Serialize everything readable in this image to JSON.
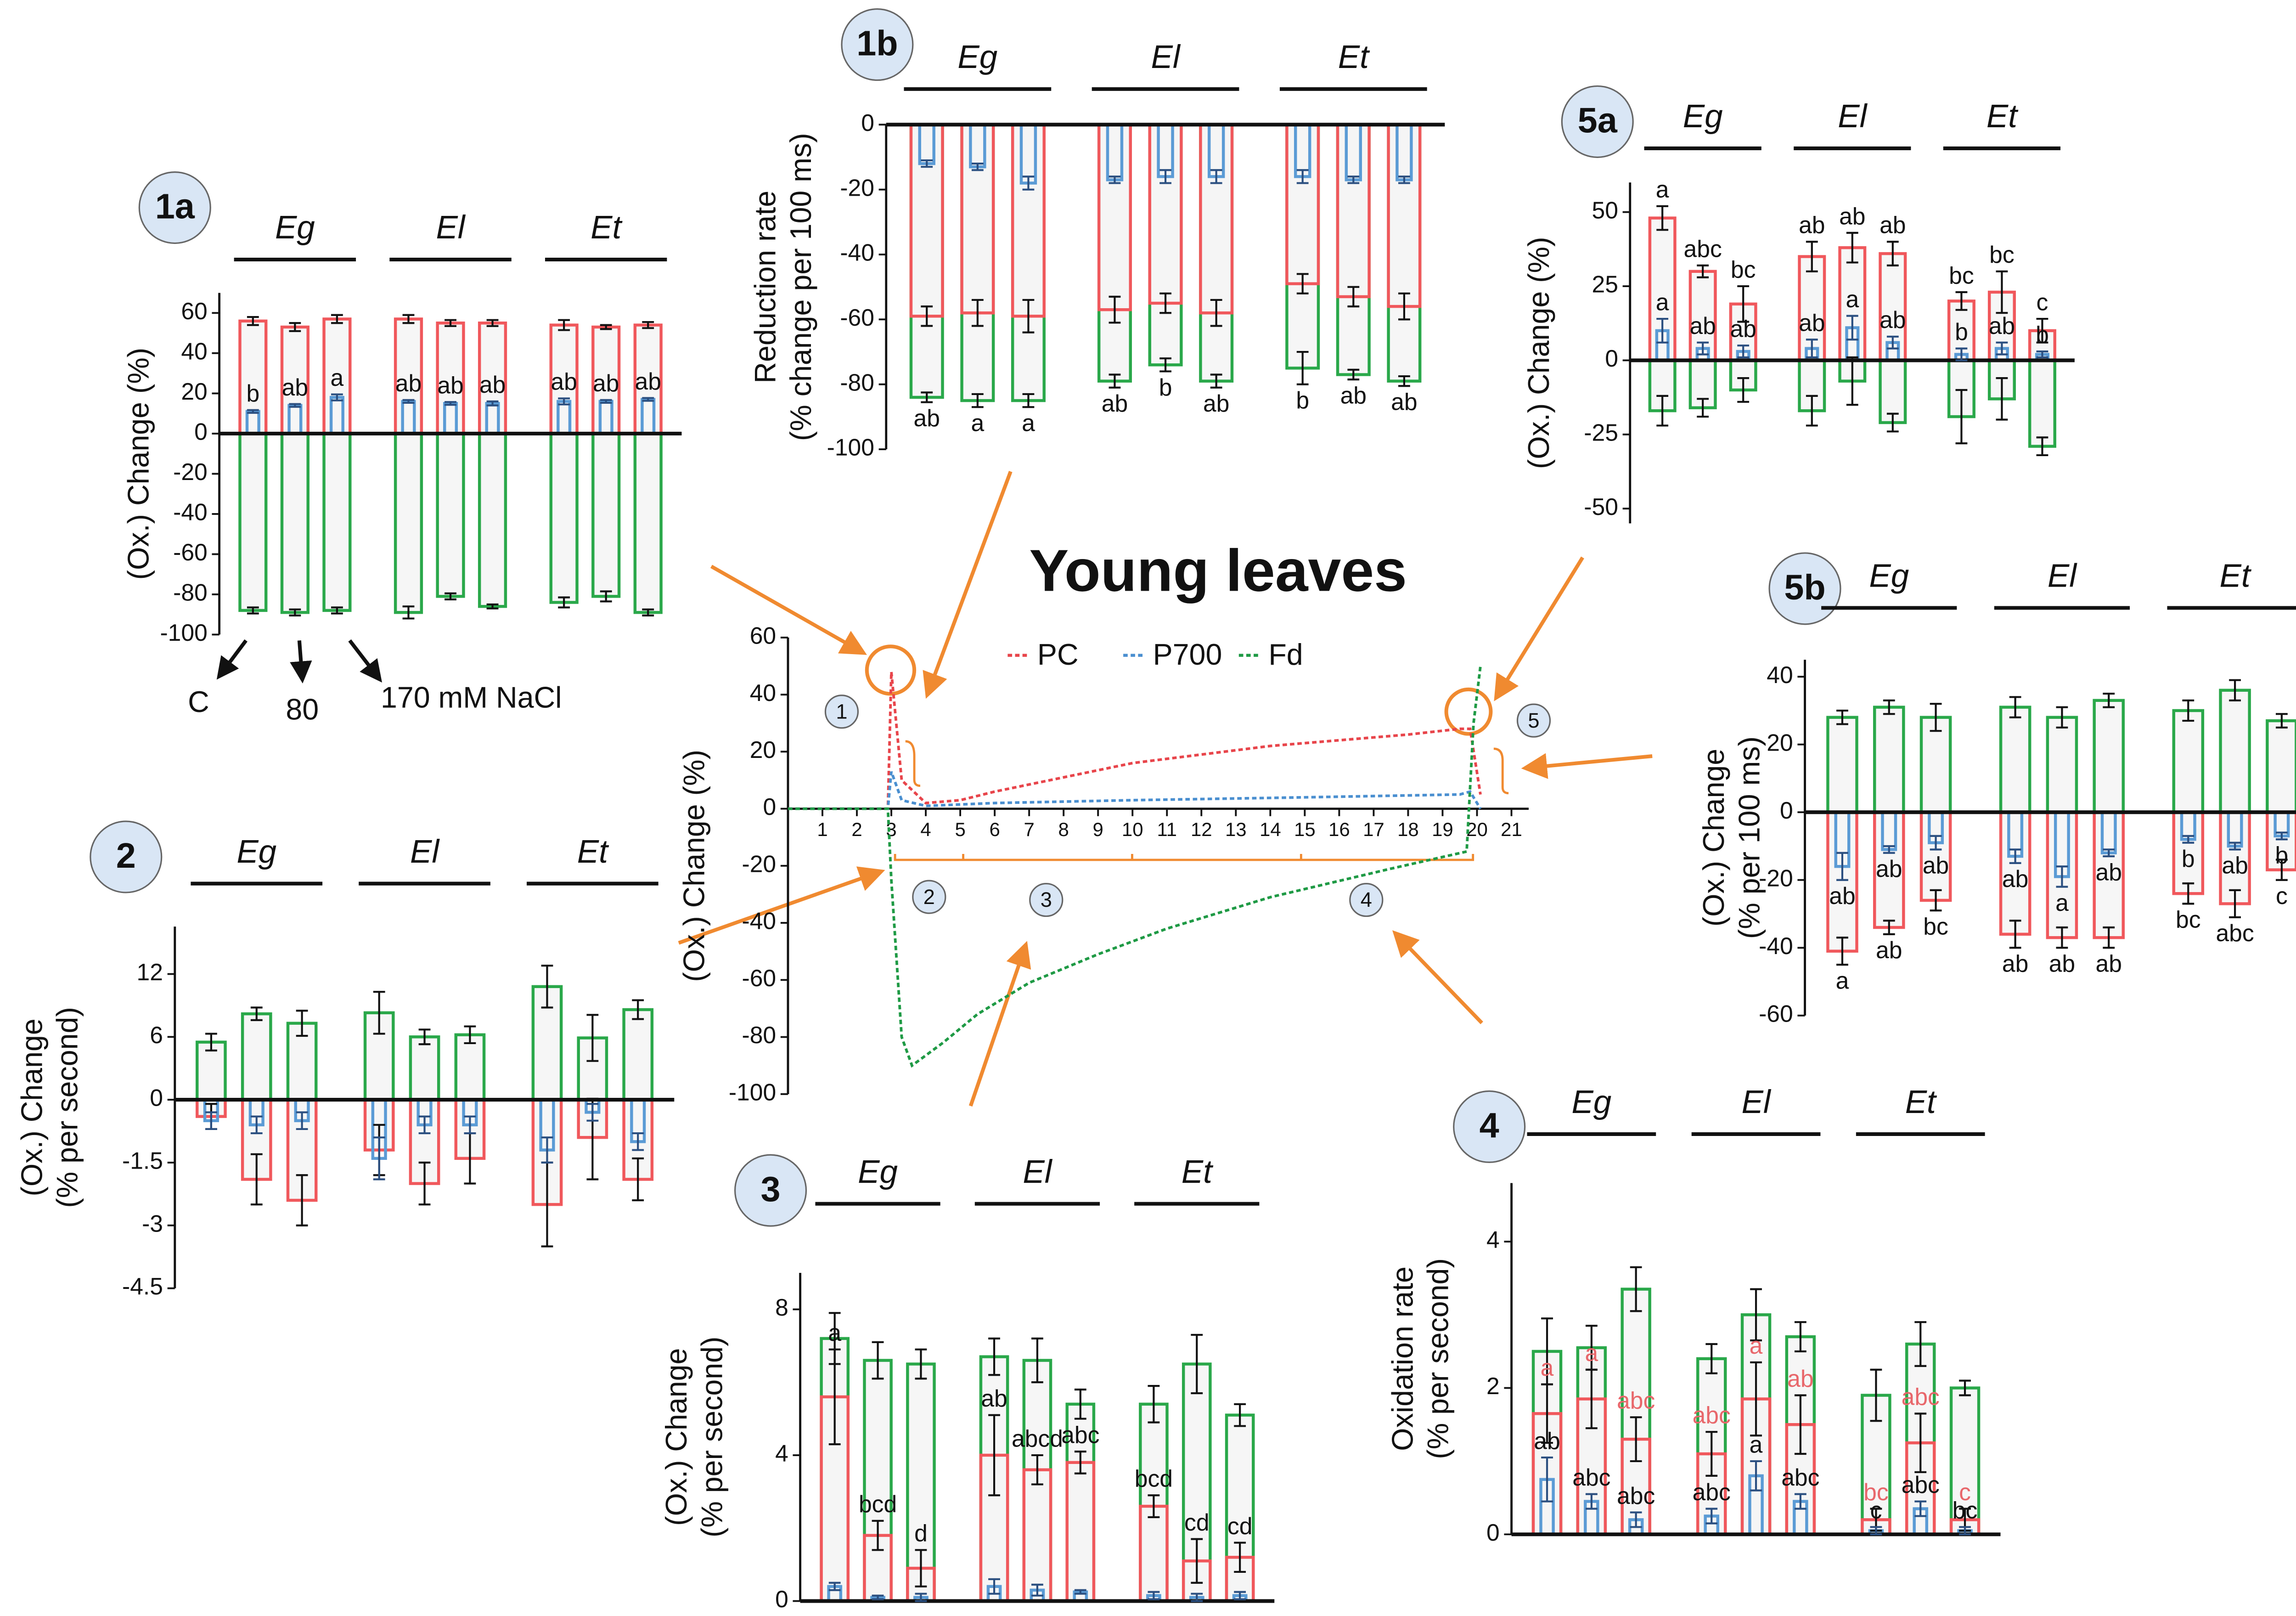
{
  "chart_data": [
    {
      "type": "bar",
      "title": "1a",
      "group_labels": [
        "Eg",
        "El",
        "Et"
      ],
      "ylabel": [
        "(Ox.) Change (%)"
      ],
      "ylim": [
        -100,
        70
      ],
      "yticks": [
        -100,
        -80,
        -60,
        -40,
        -20,
        0,
        20,
        40,
        60
      ],
      "treatment_labels": [
        "C",
        "80",
        "170 mM NaCl"
      ],
      "series": [
        {
          "color": "#2aa84a",
          "values": [
            -88,
            -89,
            -88,
            -89,
            -81,
            -86,
            -84,
            -81,
            -89
          ],
          "errors": [
            1.5,
            1.5,
            1.5,
            3,
            1.5,
            1,
            2.5,
            2.5,
            1.5
          ]
        },
        {
          "color": "#f0585c",
          "values": [
            56,
            53,
            57,
            57,
            55,
            55,
            54,
            53,
            54
          ],
          "errors": [
            2,
            2,
            2,
            2,
            1.5,
            1.5,
            2.5,
            1,
            1.5
          ]
        },
        {
          "color": "#5b9bd5",
          "values": [
            11,
            14,
            18,
            16,
            15,
            15,
            16,
            16,
            17
          ],
          "errors": [
            0.7,
            0.7,
            1.5,
            0.7,
            0.7,
            1,
            1.5,
            0.7,
            0.7
          ],
          "letters": [
            "b",
            "ab",
            "a",
            "ab",
            "ab",
            "ab",
            "ab",
            "ab",
            "ab"
          ]
        }
      ]
    },
    {
      "type": "bar",
      "title": "1b",
      "group_labels": [
        "Eg",
        "El",
        "Et"
      ],
      "ylabel": [
        "Reduction rate",
        "(% change per 100 ms)"
      ],
      "ylim": [
        -100,
        0
      ],
      "yticks": [
        -100,
        -80,
        -60,
        -40,
        -20,
        0
      ],
      "series": [
        {
          "color": "#2aa84a",
          "values": [
            -84,
            -85,
            -85,
            -79,
            -74,
            -79,
            -75,
            -77,
            -79
          ],
          "errors": [
            1.5,
            2,
            2,
            2,
            2,
            2,
            5,
            1.5,
            1.5
          ],
          "letters": [
            "ab",
            "a",
            "a",
            "ab",
            "b",
            "ab",
            "b",
            "ab",
            "ab"
          ]
        },
        {
          "color": "#f0585c",
          "values": [
            -59,
            -58,
            -59,
            -57,
            -55,
            -58,
            -49,
            -53,
            -56
          ],
          "errors": [
            3,
            4,
            5,
            4,
            3,
            4,
            3,
            3,
            4
          ]
        },
        {
          "color": "#5b9bd5",
          "values": [
            -12,
            -13,
            -18,
            -17,
            -16,
            -16,
            -16,
            -17,
            -17
          ],
          "errors": [
            1,
            1,
            2,
            1,
            2,
            2,
            2,
            1,
            1
          ]
        }
      ]
    },
    {
      "type": "bar",
      "title": "5a",
      "group_labels": [
        "Eg",
        "El",
        "Et"
      ],
      "ylabel": [
        "(Ox.) Change (%)"
      ],
      "ylim": [
        -55,
        60
      ],
      "yticks": [
        -50,
        -25,
        0,
        25,
        50
      ],
      "series": [
        {
          "color": "#2aa84a",
          "values": [
            -17,
            -16,
            -10,
            -17,
            -7,
            -21,
            -19,
            -13,
            -29
          ],
          "errors": [
            5,
            3,
            4,
            5,
            8,
            3,
            9,
            7,
            3
          ]
        },
        {
          "color": "#f0585c",
          "values": [
            48,
            30,
            19,
            35,
            38,
            36,
            20,
            23,
            10
          ],
          "errors": [
            4,
            2,
            6,
            5,
            5,
            4,
            3,
            7,
            4
          ],
          "letters": [
            "a",
            "abc",
            "bc",
            "ab",
            "ab",
            "ab",
            "bc",
            "bc",
            "c"
          ]
        },
        {
          "color": "#5b9bd5",
          "values": [
            10,
            4,
            3,
            4,
            11,
            6,
            2,
            4,
            2
          ],
          "errors": [
            4,
            2,
            2,
            3,
            4,
            2,
            2,
            2,
            1
          ],
          "letters": [
            "a",
            "ab",
            "ab",
            "ab",
            "a",
            "ab",
            "b",
            "ab",
            "b"
          ]
        }
      ]
    },
    {
      "type": "bar",
      "title": "5b",
      "group_labels": [
        "Eg",
        "El",
        "Et"
      ],
      "ylabel": [
        "(Ox.) Change",
        "(% per 100 ms)"
      ],
      "ylim": [
        -60,
        45
      ],
      "yticks": [
        -60,
        -40,
        -20,
        0,
        20,
        40
      ],
      "series": [
        {
          "color": "#2aa84a",
          "values": [
            28,
            31,
            28,
            31,
            28,
            33,
            30,
            36,
            27
          ],
          "errors": [
            2,
            2,
            4,
            3,
            3,
            2,
            3,
            3,
            2
          ]
        },
        {
          "color": "#f0585c",
          "values": [
            -41,
            -34,
            -26,
            -36,
            -37,
            -37,
            -24,
            -27,
            -17
          ],
          "errors": [
            4,
            2,
            3,
            4,
            3,
            3,
            3,
            4,
            3
          ],
          "letters": [
            "a",
            "ab",
            "bc",
            "ab",
            "ab",
            "ab",
            "bc",
            "abc",
            "c"
          ]
        },
        {
          "color": "#5b9bd5",
          "values": [
            -16,
            -11,
            -9,
            -13,
            -19,
            -12,
            -8,
            -10,
            -7
          ],
          "errors": [
            4,
            1,
            2,
            2,
            3,
            1,
            1,
            1,
            1
          ],
          "letters": [
            "ab",
            "ab",
            "ab",
            "ab",
            "a",
            "ab",
            "b",
            "ab",
            "b"
          ]
        }
      ]
    },
    {
      "type": "bar",
      "title": "2",
      "group_labels": [
        "Eg",
        "El",
        "Et"
      ],
      "ylabel": [
        "(Ox.) Change",
        "(% per second)"
      ],
      "y_scale": "piecewise",
      "ylim": [
        -4.5,
        12
      ],
      "yticks": [
        -4.5,
        -3,
        -1.5,
        0,
        6,
        12
      ],
      "series": [
        {
          "color": "#2aa84a",
          "values": [
            5.5,
            8.2,
            7.3,
            8.3,
            6.0,
            6.2,
            10.8,
            5.9,
            8.6
          ],
          "errors": [
            0.8,
            0.6,
            1.2,
            2,
            0.7,
            0.8,
            2,
            2.2,
            0.9
          ]
        },
        {
          "color": "#f0585c",
          "values": [
            -0.4,
            -1.9,
            -2.4,
            -1.2,
            -2.0,
            -1.4,
            -2.5,
            -0.9,
            -1.9
          ],
          "errors": [
            0.3,
            0.6,
            0.6,
            0.6,
            0.5,
            0.6,
            1.0,
            1.0,
            0.5
          ]
        },
        {
          "color": "#5b9bd5",
          "values": [
            -0.5,
            -0.6,
            -0.5,
            -1.4,
            -0.6,
            -0.6,
            -1.2,
            -0.3,
            -1.0
          ],
          "errors": [
            0.2,
            0.2,
            0.2,
            0.5,
            0.2,
            0.2,
            0.3,
            0.2,
            0.2
          ]
        }
      ]
    },
    {
      "type": "bar",
      "title": "3",
      "group_labels": [
        "Eg",
        "El",
        "Et"
      ],
      "ylabel": [
        "(Ox.) Change",
        "(% per second)"
      ],
      "ylim": [
        0,
        9
      ],
      "yticks": [
        0,
        4,
        8
      ],
      "series": [
        {
          "color": "#2aa84a",
          "values": [
            7.2,
            6.6,
            6.5,
            6.7,
            6.6,
            5.4,
            5.4,
            6.5,
            5.1
          ],
          "errors": [
            0.7,
            0.5,
            0.4,
            0.5,
            0.6,
            0.4,
            0.5,
            0.8,
            0.3
          ]
        },
        {
          "color": "#f0585c",
          "values": [
            5.6,
            1.8,
            0.9,
            4.0,
            3.6,
            3.8,
            2.6,
            1.1,
            1.2
          ],
          "errors": [
            1.3,
            0.4,
            0.5,
            1.1,
            0.4,
            0.3,
            0.3,
            0.6,
            0.4
          ],
          "letters": [
            "a",
            "bcd",
            "d",
            "ab",
            "abcd",
            "abc",
            "bcd",
            "cd",
            "cd"
          ]
        },
        {
          "color": "#5b9bd5",
          "values": [
            0.4,
            0.1,
            0.1,
            0.4,
            0.3,
            0.25,
            0.15,
            0.1,
            0.15
          ],
          "errors": [
            0.1,
            0.05,
            0.1,
            0.2,
            0.15,
            0.05,
            0.1,
            0.1,
            0.1
          ]
        }
      ]
    },
    {
      "type": "bar",
      "title": "4",
      "group_labels": [
        "Eg",
        "El",
        "Et"
      ],
      "ylabel": [
        "Oxidation rate",
        "(% per second)"
      ],
      "ylim": [
        0,
        4.8
      ],
      "yticks": [
        0,
        2,
        4
      ],
      "series": [
        {
          "color": "#2aa84a",
          "values": [
            2.5,
            2.55,
            3.35,
            2.4,
            3.0,
            2.7,
            1.9,
            2.6,
            2.0
          ],
          "errors": [
            0.45,
            0.3,
            0.3,
            0.2,
            0.35,
            0.2,
            0.35,
            0.3,
            0.1
          ]
        },
        {
          "color": "#f0585c",
          "values": [
            1.65,
            1.85,
            1.3,
            1.1,
            1.85,
            1.5,
            0.2,
            1.25,
            0.2
          ],
          "errors": [
            0.4,
            0.4,
            0.3,
            0.3,
            0.5,
            0.4,
            0.15,
            0.4,
            0.15
          ],
          "letters": [
            "a",
            "a",
            "abc",
            "abc",
            "a",
            "ab",
            "bc",
            "abc",
            "c"
          ],
          "letter_color": "#e8676b"
        },
        {
          "color": "#5b9bd5",
          "values": [
            0.75,
            0.45,
            0.2,
            0.25,
            0.8,
            0.45,
            0.05,
            0.35,
            0.05
          ],
          "errors": [
            0.3,
            0.1,
            0.1,
            0.1,
            0.2,
            0.1,
            0.05,
            0.1,
            0.05
          ],
          "letters": [
            "ab",
            "abc",
            "abc",
            "abc",
            "a",
            "abc",
            "c",
            "abc",
            "bc"
          ]
        }
      ]
    },
    {
      "type": "line",
      "title": "Young leaves",
      "ylabel": [
        "(Ox.) Change (%)"
      ],
      "xlim": [
        0,
        21.5
      ],
      "xticks": [
        1,
        2,
        3,
        4,
        5,
        6,
        7,
        8,
        9,
        10,
        11,
        12,
        13,
        14,
        15,
        16,
        17,
        18,
        19,
        20,
        21
      ],
      "ylim": [
        -100,
        60
      ],
      "yticks": [
        -100,
        -80,
        -60,
        -40,
        -20,
        0,
        20,
        40,
        60
      ],
      "phase_labels": [
        "1",
        "2",
        "3",
        "4",
        "5"
      ],
      "series": [
        {
          "name": "PC",
          "color": "#e8454b",
          "x": [
            0,
            2.9,
            3,
            3.3,
            4,
            5,
            6,
            8,
            10,
            12,
            14,
            16,
            18,
            19.5,
            19.8,
            20.1
          ],
          "values": [
            0,
            0,
            48,
            10,
            2,
            3,
            6,
            11,
            16,
            19,
            22,
            24,
            26,
            28,
            28,
            5
          ]
        },
        {
          "name": "P700",
          "color": "#4a8fd0",
          "x": [
            0,
            2.9,
            3,
            3.3,
            4,
            6,
            10,
            15,
            19.5,
            19.8,
            20.1
          ],
          "values": [
            0,
            0,
            13,
            3,
            1,
            2,
            3,
            4,
            5,
            6,
            0
          ]
        },
        {
          "name": "Fd",
          "color": "#1f9a45",
          "x": [
            0,
            2.9,
            3,
            3.3,
            3.6,
            4.5,
            5.5,
            7,
            9,
            11,
            14,
            17.5,
            19.7,
            19.9,
            20.1
          ],
          "values": [
            0,
            0,
            -25,
            -80,
            -90,
            -82,
            -72,
            -61,
            -51,
            -42,
            -31,
            -21,
            -15,
            30,
            50
          ]
        }
      ]
    }
  ]
}
